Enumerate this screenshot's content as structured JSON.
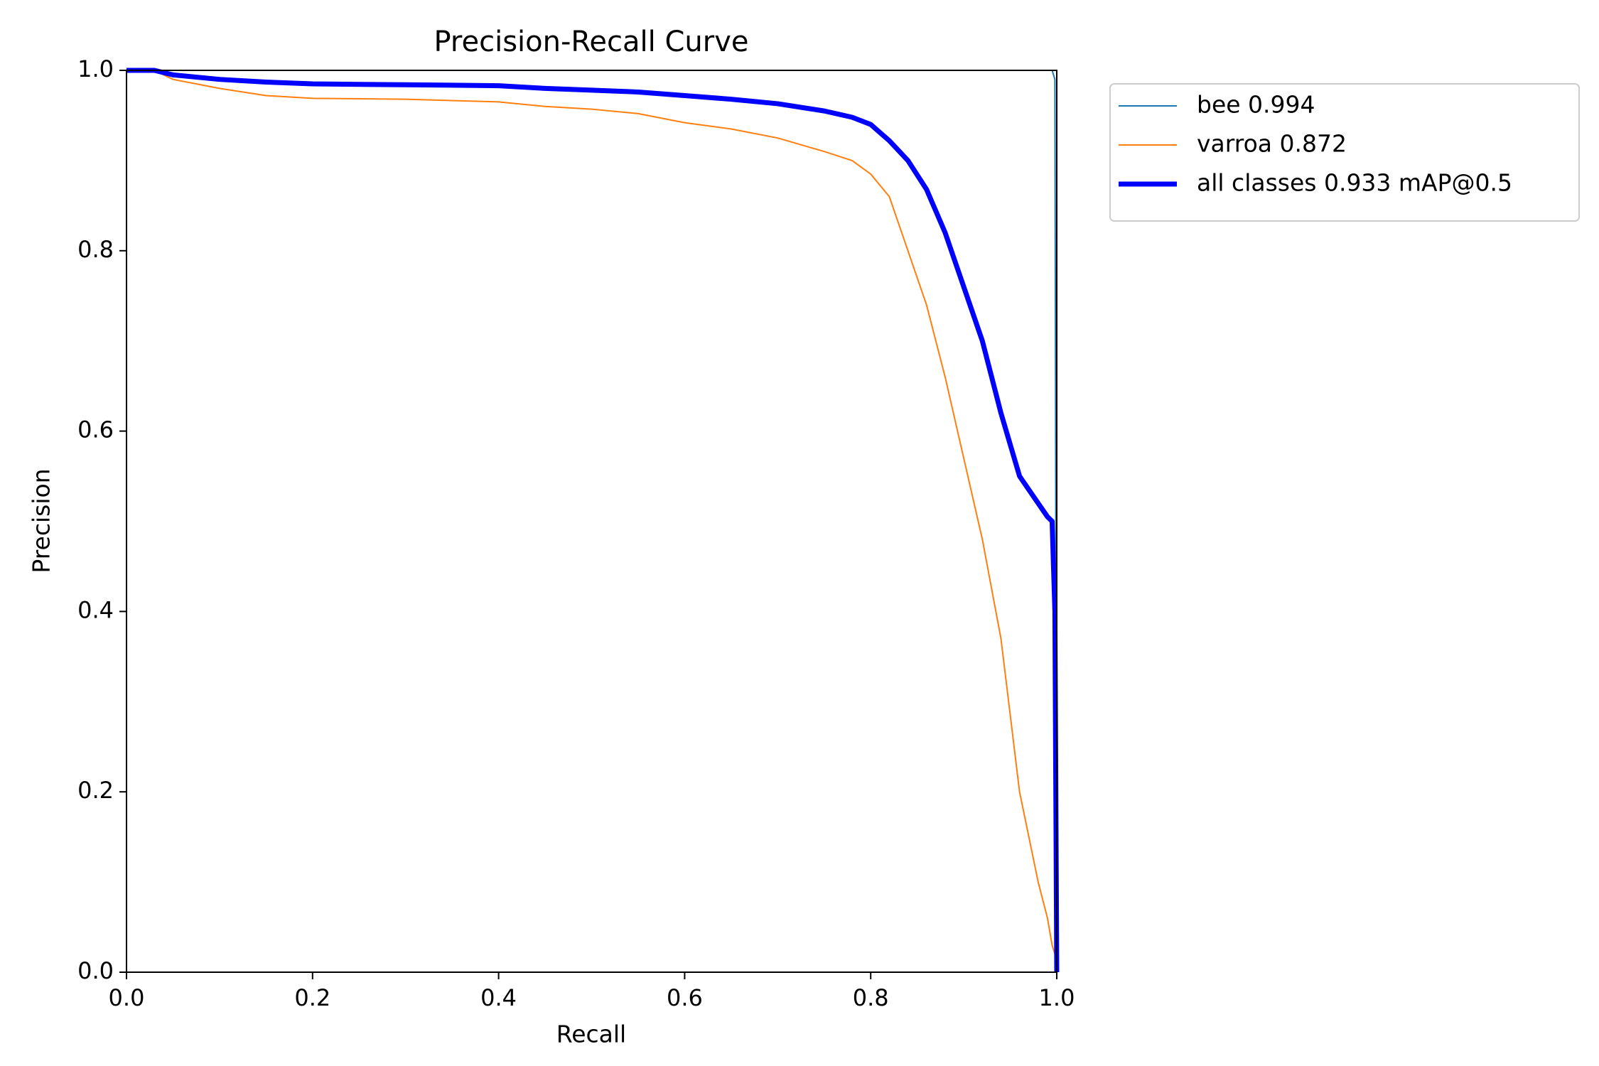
{
  "chart_data": {
    "type": "line",
    "title": "Precision-Recall Curve",
    "x_label": "Recall",
    "y_label": "Precision",
    "x": [
      0,
      0.03,
      0.05,
      0.1,
      0.15,
      0.2,
      0.3,
      0.4,
      0.45,
      0.5,
      0.55,
      0.6,
      0.65,
      0.7,
      0.75,
      0.78,
      0.8,
      0.82,
      0.84,
      0.86,
      0.88,
      0.9,
      0.92,
      0.94,
      0.96,
      0.98,
      0.99,
      0.995,
      0.998,
      1.0
    ],
    "series": [
      {
        "name": "bee 0.994",
        "color": "#1f77b4",
        "width": 2,
        "values": [
          1,
          1,
          1,
          1,
          1,
          1,
          1,
          1,
          1,
          1,
          1,
          1,
          1,
          1,
          1,
          1,
          1,
          1,
          1,
          1,
          1,
          1,
          1,
          1,
          1,
          1,
          1,
          1,
          0.99,
          0
        ]
      },
      {
        "name": "varroa 0.872",
        "color": "#ff7f0e",
        "width": 2,
        "values": [
          1,
          1,
          0.99,
          0.98,
          0.972,
          0.969,
          0.968,
          0.965,
          0.96,
          0.957,
          0.952,
          0.942,
          0.935,
          0.925,
          0.91,
          0.9,
          0.885,
          0.86,
          0.8,
          0.74,
          0.66,
          0.57,
          0.48,
          0.37,
          0.2,
          0.1,
          0.06,
          0.03,
          0.02,
          0
        ]
      },
      {
        "name": "all classes 0.933 mAP@0.5",
        "color": "#0000ff",
        "width": 7,
        "values": [
          1,
          1,
          0.995,
          0.99,
          0.987,
          0.985,
          0.984,
          0.983,
          0.98,
          0.978,
          0.976,
          0.972,
          0.968,
          0.963,
          0.955,
          0.948,
          0.94,
          0.922,
          0.9,
          0.868,
          0.82,
          0.76,
          0.7,
          0.62,
          0.55,
          0.52,
          0.505,
          0.5,
          0.4,
          0
        ]
      }
    ],
    "xlim": [
      0,
      1
    ],
    "ylim": [
      0,
      1
    ],
    "xticks": [
      {
        "value": 0,
        "label": "0.0"
      },
      0.2,
      0.4,
      0.6,
      0.8,
      {
        "value": 1,
        "label": "1.0"
      }
    ],
    "yticks": [
      {
        "value": 0,
        "label": "0.0"
      },
      0.2,
      0.4,
      0.6,
      0.8,
      {
        "value": 1,
        "label": "1.0"
      }
    ],
    "grid": false,
    "legend": "outside"
  }
}
